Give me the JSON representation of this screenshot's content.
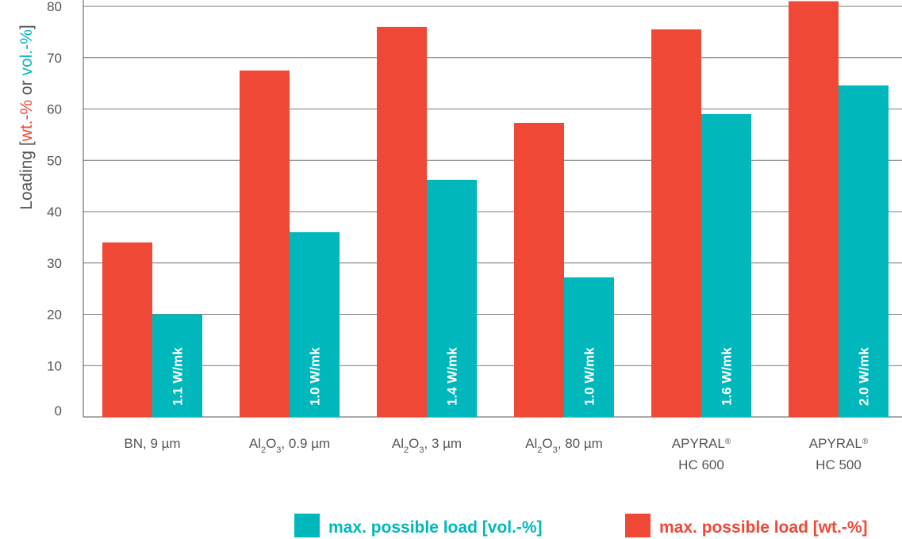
{
  "chart_data": {
    "type": "bar",
    "title": "",
    "ylabel": {
      "prefix": "Loading [",
      "wt": "wt.-%",
      "middle": " or ",
      "vol": "vol.-%",
      "suffix": "]"
    },
    "ylim": [
      0,
      80
    ],
    "yticks": [
      "0",
      "10",
      "20",
      "30",
      "40",
      "50",
      "60",
      "70",
      "80"
    ],
    "grid": true,
    "legend_position": "bottom",
    "categories": [
      {
        "parts": [
          {
            "t": "BN, 9 µm"
          }
        ]
      },
      {
        "parts": [
          {
            "t": "Al"
          },
          {
            "t": "2",
            "sub": true
          },
          {
            "t": "O"
          },
          {
            "t": "3",
            "sub": true
          },
          {
            "t": ", 0.9 µm"
          }
        ]
      },
      {
        "parts": [
          {
            "t": "Al"
          },
          {
            "t": "2",
            "sub": true
          },
          {
            "t": "O"
          },
          {
            "t": "3",
            "sub": true
          },
          {
            "t": ", 3 µm"
          }
        ]
      },
      {
        "parts": [
          {
            "t": "Al"
          },
          {
            "t": "2",
            "sub": true
          },
          {
            "t": "O"
          },
          {
            "t": "3",
            "sub": true
          },
          {
            "t": ", 80 µm"
          }
        ]
      },
      {
        "parts": [
          {
            "t": "APYRAL"
          },
          {
            "t": "®",
            "sup": true
          }
        ],
        "line2": "HC 600"
      },
      {
        "parts": [
          {
            "t": "APYRAL"
          },
          {
            "t": "®",
            "sup": true
          }
        ],
        "line2": "HC 500"
      }
    ],
    "series": [
      {
        "name": "max. possible load [wt.-%]",
        "color": "#ef4836",
        "values": [
          34,
          67.5,
          76,
          57.3,
          75.5,
          81
        ]
      },
      {
        "name": "max. possible load [vol.-%]",
        "color": "#00b8bc",
        "values": [
          20,
          36,
          46.2,
          27.2,
          59,
          64.6
        ],
        "labels": [
          "1.1 W/mk",
          "1.0 W/mk",
          "1.4 W/mk",
          "1.0 W/mk",
          "1.6 W/mk",
          "2.0 W/mk"
        ]
      }
    ],
    "legend": [
      {
        "label": "max. possible load [vol.-%]",
        "color": "#00b8bc"
      },
      {
        "label": "max. possible load [wt.-%]",
        "color": "#ef4836"
      }
    ]
  }
}
